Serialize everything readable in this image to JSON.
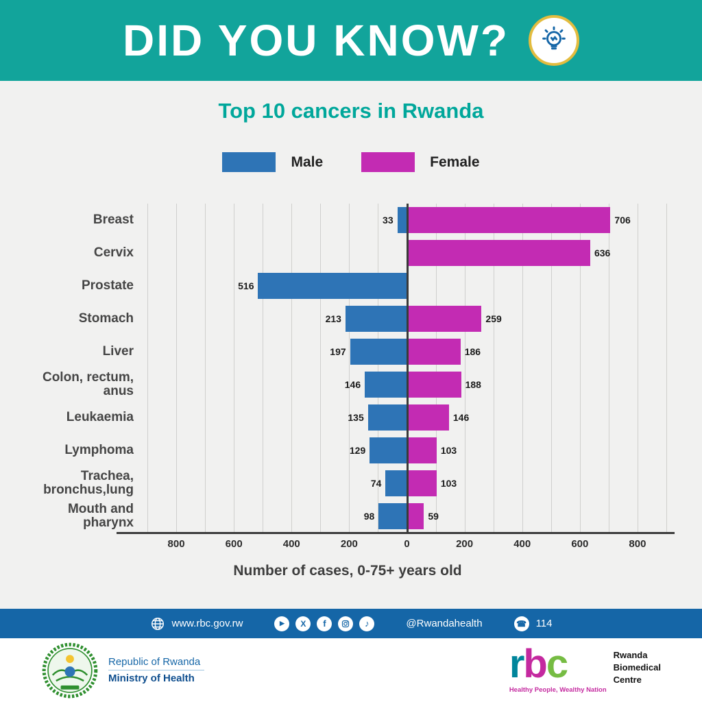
{
  "banner": {
    "title": "DID YOU KNOW?"
  },
  "chart_title": "Top 10 cancers in Rwanda",
  "legend": {
    "male_label": "Male",
    "female_label": "Female"
  },
  "chart_data": {
    "type": "bar",
    "orientation": "horizontal-diverging",
    "title": "Top 10 cancers in Rwanda",
    "categories": [
      "Breast",
      "Cervix",
      "Prostate",
      "Stomach",
      "Liver",
      "Colon, rectum,\nanus",
      "Leukaemia",
      "Lymphoma",
      "Trachea,\nbronchus,lung",
      "Mouth and\npharynx"
    ],
    "series": [
      {
        "name": "Male",
        "color": "#2E74B6",
        "values": [
          33,
          null,
          516,
          213,
          197,
          146,
          135,
          129,
          74,
          98
        ]
      },
      {
        "name": "Female",
        "color": "#C32BB3",
        "values": [
          706,
          636,
          null,
          259,
          186,
          188,
          146,
          103,
          103,
          59
        ]
      }
    ],
    "axis_half_range": 900,
    "gridline_step": 100,
    "x_ticks": [
      {
        "value": -800,
        "label": "800"
      },
      {
        "value": -600,
        "label": "600"
      },
      {
        "value": -400,
        "label": "400"
      },
      {
        "value": -200,
        "label": "200"
      },
      {
        "value": 0,
        "label": "0"
      },
      {
        "value": 200,
        "label": "200"
      },
      {
        "value": 400,
        "label": "400"
      },
      {
        "value": 600,
        "label": "600"
      },
      {
        "value": 800,
        "label": "800"
      }
    ],
    "xlabel": "Number of cases, 0-75+ years old",
    "grid": true,
    "legend_position": "top"
  },
  "footer": {
    "website": "www.rbc.gov.rw",
    "social_handle": "@Rwandahealth",
    "phone": "114",
    "social_icons": [
      "youtube-icon",
      "x-icon",
      "facebook-icon",
      "instagram-icon",
      "tiktok-icon"
    ]
  },
  "logos": {
    "gov": {
      "line1": "Republic of Rwanda",
      "line2": "Ministry of Health"
    },
    "rbc": {
      "letters": {
        "r": "r",
        "b": "b",
        "c": "c"
      },
      "name_lines": {
        "0": "Rwanda",
        "1": "Biomedical",
        "2": "Centre"
      },
      "tagline": "Healthy People, Wealthy Nation"
    }
  }
}
